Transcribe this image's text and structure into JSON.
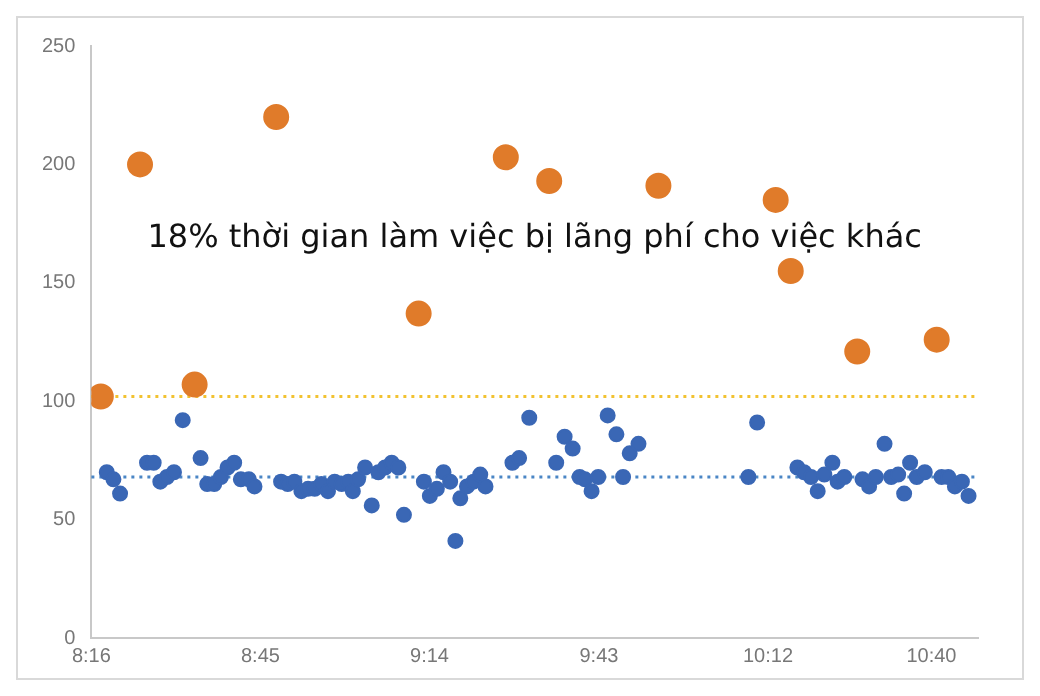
{
  "chart_data": {
    "type": "scatter",
    "annotations": [
      "18% thời gian làm việc bị lãng phí cho việc khác"
    ],
    "series": [
      {
        "color": "#3a67b5",
        "x": [
          8.311,
          8.33,
          8.349,
          8.426,
          8.445,
          8.464,
          8.483,
          8.503,
          8.528,
          8.579,
          8.598,
          8.618,
          8.637,
          8.656,
          8.675,
          8.694,
          8.717,
          8.733,
          8.809,
          8.828,
          8.847,
          8.867,
          8.886,
          8.905,
          8.924,
          8.943,
          8.962,
          8.982,
          9.001,
          9.014,
          9.029,
          9.049,
          9.068,
          9.087,
          9.106,
          9.125,
          9.144,
          9.16,
          9.217,
          9.234,
          9.254,
          9.273,
          9.292,
          9.307,
          9.321,
          9.34,
          9.359,
          9.378,
          9.393,
          9.47,
          9.489,
          9.518,
          9.595,
          9.619,
          9.642,
          9.662,
          9.677,
          9.696,
          9.715,
          9.742,
          9.767,
          9.786,
          9.805,
          9.83,
          10.144,
          10.169,
          10.284,
          10.303,
          10.323,
          10.342,
          10.361,
          10.384,
          10.399,
          10.418,
          10.47,
          10.489,
          10.508,
          10.533,
          10.552,
          10.572,
          10.589,
          10.606,
          10.625,
          10.648,
          10.696,
          10.715,
          10.734,
          10.754,
          10.773
        ],
        "values": [
          70,
          67,
          61,
          74,
          74,
          66,
          68,
          70,
          92,
          76,
          65,
          65,
          68,
          72,
          74,
          67,
          67,
          64,
          66,
          65,
          66,
          62,
          63,
          63,
          65,
          62,
          66,
          65,
          66,
          62,
          67,
          72,
          56,
          70,
          72,
          74,
          72,
          52,
          66,
          60,
          63,
          70,
          66,
          41,
          59,
          64,
          66,
          69,
          64,
          74,
          76,
          93,
          74,
          85,
          80,
          68,
          67,
          62,
          68,
          94,
          86,
          68,
          78,
          82,
          68,
          91,
          72,
          70,
          68,
          62,
          69,
          74,
          66,
          68,
          67,
          64,
          68,
          82,
          68,
          69,
          61,
          74,
          68,
          70,
          68,
          68,
          64,
          66,
          60
        ]
      },
      {
        "color": "#e07b2a",
        "x": [
          8.294,
          8.406,
          8.562,
          8.795,
          9.202,
          9.451,
          9.575,
          9.887,
          10.222,
          10.265,
          10.455,
          10.682
        ],
        "values": [
          102,
          200,
          107,
          220,
          137,
          203,
          193,
          191,
          185,
          155,
          121,
          126
        ]
      }
    ],
    "xlim": [
      8.267,
      10.8
    ],
    "xticks": [
      {
        "value": 8.267,
        "label": "8:16"
      },
      {
        "value": 8.75,
        "label": "8:45"
      },
      {
        "value": 9.233,
        "label": "9:14"
      },
      {
        "value": 9.717,
        "label": "9:43"
      },
      {
        "value": 10.2,
        "label": "10:12"
      },
      {
        "value": 10.667,
        "label": "10:40"
      }
    ],
    "ylim": [
      0,
      250
    ],
    "yticks": [
      0,
      50,
      100,
      150,
      200,
      250
    ],
    "ref_lines": [
      {
        "axis": "y",
        "value": 102,
        "color": "#f2c230",
        "line_style": "dotted"
      },
      {
        "axis": "y",
        "value": 68,
        "color": "#4a86c5",
        "line_style": "dotted"
      }
    ],
    "grid": false,
    "legend": false,
    "marker": "circle"
  }
}
